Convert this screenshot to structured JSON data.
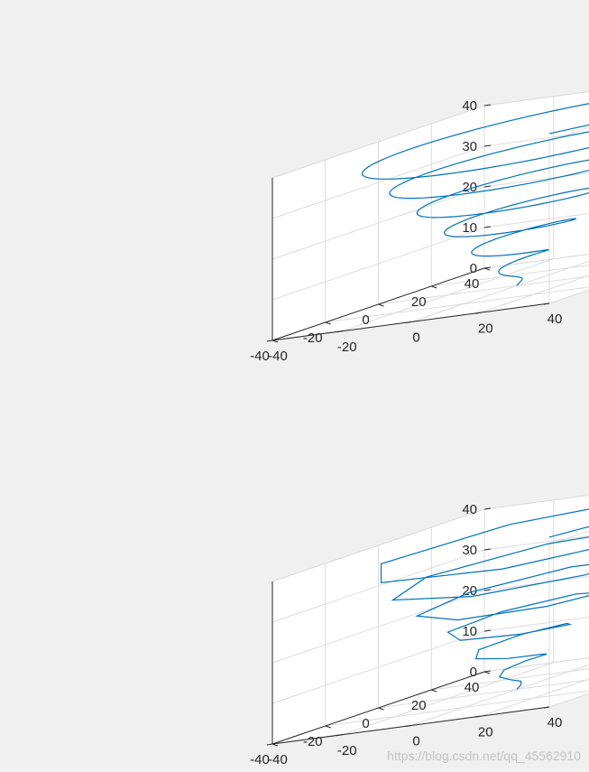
{
  "chart_data": [
    {
      "type": "line3d",
      "title": "",
      "xlabel": "",
      "ylabel": "",
      "zlabel": "",
      "xlim": [
        -40,
        40
      ],
      "ylim": [
        -40,
        40
      ],
      "zlim": [
        0,
        40
      ],
      "x_ticks": [
        "-40",
        "-20",
        "0",
        "20",
        "40"
      ],
      "y_ticks": [
        "-40",
        "-20",
        "0",
        "20",
        "40"
      ],
      "z_ticks": [
        "0",
        "10",
        "20",
        "30",
        "40"
      ],
      "grid": true,
      "series": [
        {
          "color": "#0072bd",
          "curve": "helix",
          "t_start": 0,
          "t_end": 40,
          "samples": 400,
          "equations": {
            "x": "t*sin(t)",
            "y": "t*cos(t)",
            "z": "t"
          }
        }
      ]
    },
    {
      "type": "line3d",
      "title": "",
      "xlabel": "",
      "ylabel": "",
      "zlabel": "",
      "xlim": [
        -40,
        40
      ],
      "ylim": [
        -40,
        40
      ],
      "zlim": [
        0,
        40
      ],
      "x_ticks": [
        "-40",
        "-20",
        "0",
        "20",
        "40"
      ],
      "y_ticks": [
        "-40",
        "-20",
        "0",
        "20",
        "40"
      ],
      "z_ticks": [
        "0",
        "10",
        "20",
        "30",
        "40"
      ],
      "grid": true,
      "series": [
        {
          "color": "#0072bd",
          "curve": "helix",
          "t_start": 0,
          "t_end": 40,
          "samples": 41,
          "equations": {
            "x": "t*sin(t)",
            "y": "t*cos(t)",
            "z": "t"
          }
        }
      ]
    }
  ],
  "watermark": "https://blog.csdn.net/qq_45562910"
}
